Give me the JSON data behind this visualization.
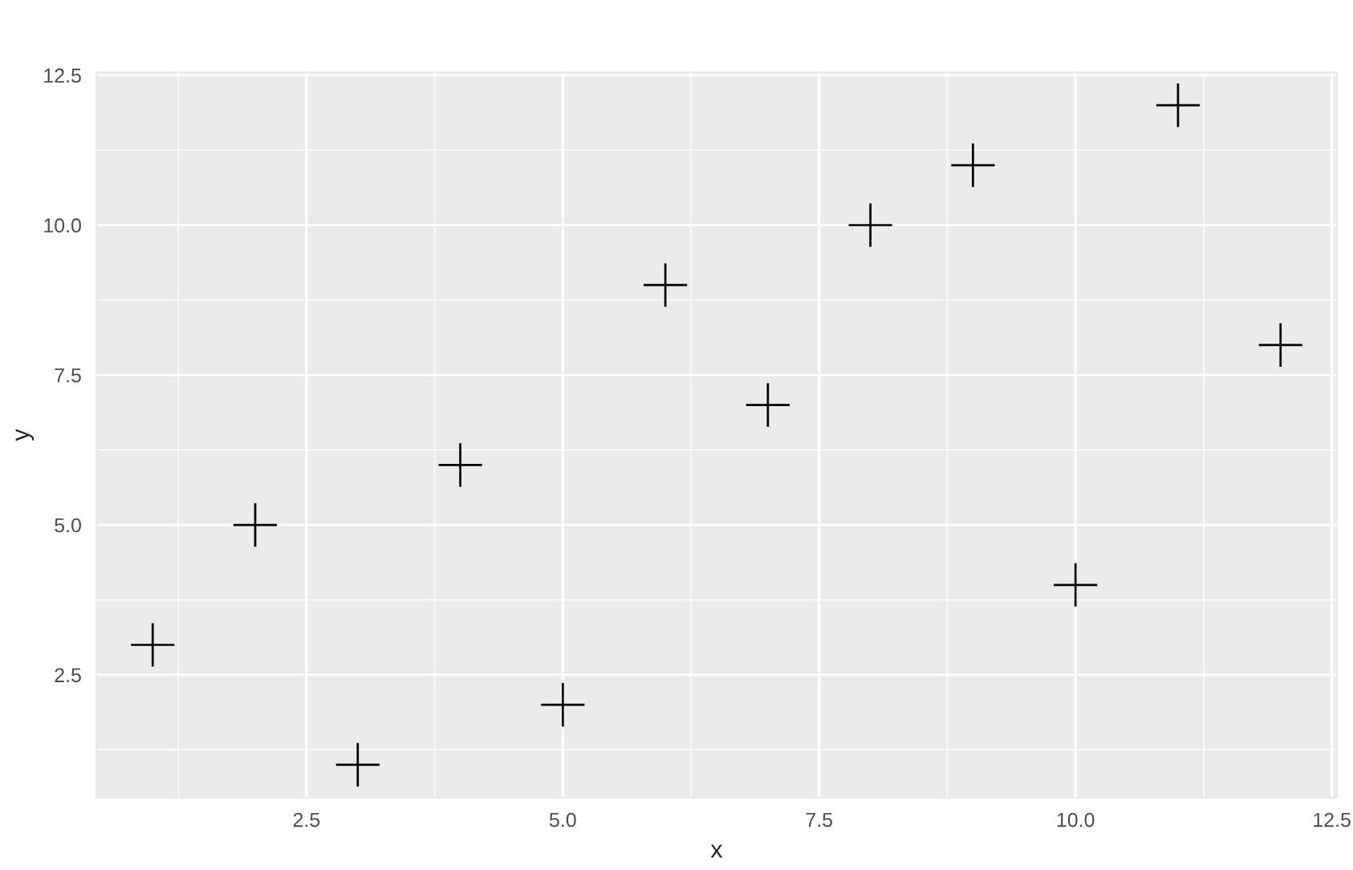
{
  "chart_data": {
    "type": "scatter",
    "xlabel": "x",
    "ylabel": "y",
    "x": [
      1,
      2,
      3,
      4,
      5,
      6,
      7,
      8,
      9,
      10,
      11,
      12
    ],
    "series": [
      {
        "color": "#000000",
        "values": [
          3,
          5,
          1,
          6,
          2,
          9,
          7,
          10,
          11,
          4,
          12,
          8
        ]
      }
    ],
    "xlim": [
      0.45,
      12.55
    ],
    "ylim": [
      0.45,
      12.55
    ],
    "xticks": [
      {
        "value": 2.5,
        "label": "2.5"
      },
      {
        "value": 5,
        "label": "5.0"
      },
      {
        "value": 7.5,
        "label": "7.5"
      },
      {
        "value": 10,
        "label": "10.0"
      },
      {
        "value": 12.5,
        "label": "12.5"
      }
    ],
    "yticks": [
      {
        "value": 2.5,
        "label": "2.5"
      },
      {
        "value": 5,
        "label": "5.0"
      },
      {
        "value": 7.5,
        "label": "7.5"
      },
      {
        "value": 10,
        "label": "10.0"
      },
      {
        "value": 12.5,
        "label": "12.5"
      }
    ],
    "grid": true,
    "marker": "cross"
  }
}
